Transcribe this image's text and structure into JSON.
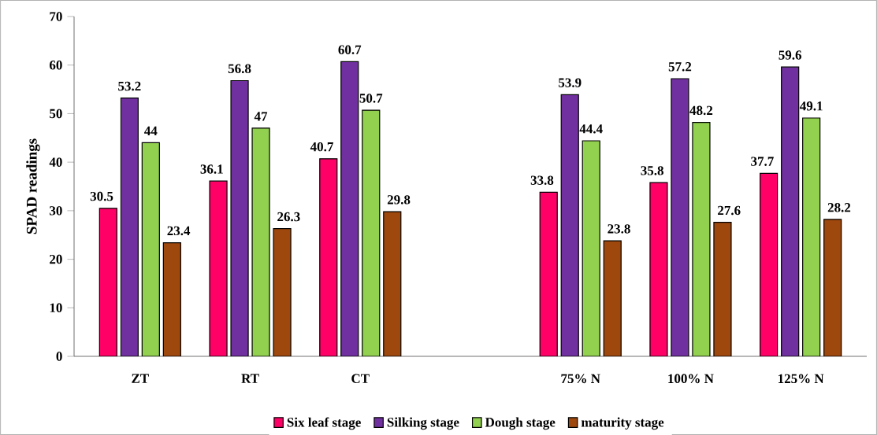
{
  "chart_data": {
    "type": "bar",
    "ylabel": "SPAD readings",
    "categories": [
      "ZT",
      "RT",
      "CT",
      null,
      "75% N",
      "100% N",
      "125% N"
    ],
    "series": [
      {
        "name": "Six leaf stage",
        "color": "#ff0066",
        "values": [
          30.5,
          36.1,
          40.7,
          null,
          33.8,
          35.8,
          37.7
        ]
      },
      {
        "name": "Silking stage",
        "color": "#7030a0",
        "values": [
          53.2,
          56.8,
          60.7,
          null,
          53.9,
          57.2,
          59.6
        ]
      },
      {
        "name": "Dough stage",
        "color": "#92d050",
        "values": [
          44,
          47,
          50.7,
          null,
          44.4,
          48.2,
          49.1
        ]
      },
      {
        "name": "maturity stage",
        "color": "#9e480e",
        "values": [
          23.4,
          26.3,
          29.8,
          null,
          23.8,
          27.6,
          28.2
        ]
      }
    ],
    "ylim": [
      0,
      70
    ],
    "yticks": [
      0,
      10,
      20,
      30,
      40,
      50,
      60,
      70
    ],
    "data_labels": true,
    "legend": "bottom",
    "grid": false
  }
}
